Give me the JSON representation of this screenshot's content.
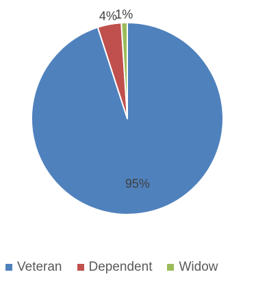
{
  "chart_data": {
    "type": "pie",
    "categories": [
      "Veteran",
      "Dependent",
      "Widow"
    ],
    "values": [
      95,
      4,
      1
    ],
    "data_labels": [
      "95%",
      "4%",
      "1%"
    ],
    "colors": [
      "#4F81BD",
      "#C0504D",
      "#9BBB59"
    ],
    "legend_position": "bottom",
    "title": ""
  }
}
